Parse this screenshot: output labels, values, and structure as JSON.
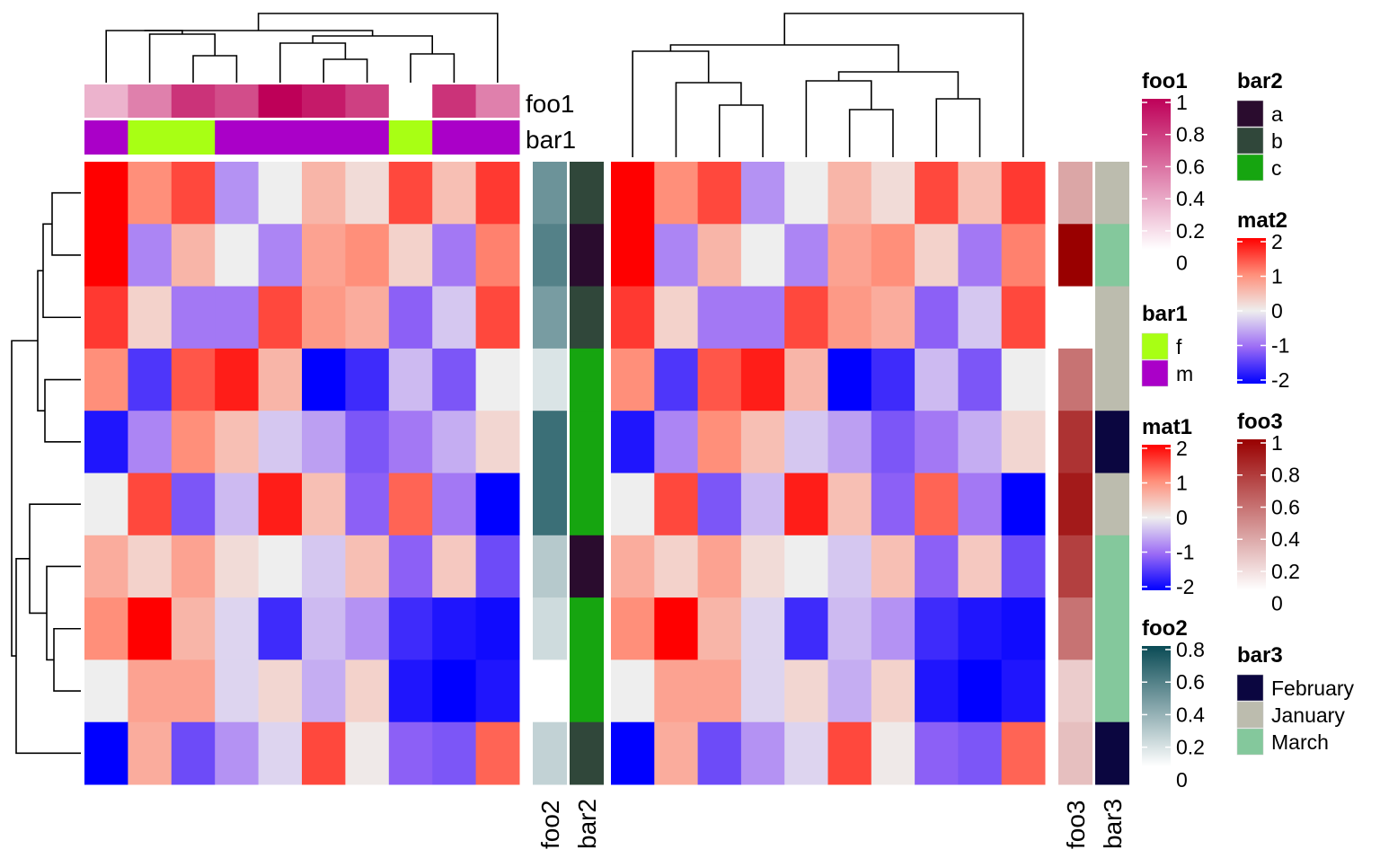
{
  "chart_data": {
    "type": "heatmap",
    "row_clustered": true,
    "column_clustered": true,
    "matrices": [
      {
        "name": "mat1",
        "values": [
          [
            2.0,
            1.0,
            1.5,
            -0.7,
            0.0,
            0.6,
            0.2,
            1.5,
            0.5,
            1.6
          ],
          [
            2.1,
            -0.8,
            0.6,
            0.0,
            -0.8,
            0.8,
            1.0,
            0.3,
            -0.9,
            1.1
          ],
          [
            1.6,
            0.3,
            -0.9,
            -0.9,
            1.5,
            0.9,
            0.7,
            -1.1,
            -0.3,
            1.5
          ],
          [
            1.0,
            -1.5,
            1.4,
            1.8,
            0.6,
            -2.1,
            -1.6,
            -0.4,
            -1.2,
            0.0
          ],
          [
            -1.8,
            -0.8,
            1.0,
            0.5,
            -0.3,
            -0.6,
            -1.2,
            -0.9,
            -0.5,
            0.25
          ],
          [
            0.0,
            1.5,
            -1.2,
            -0.4,
            1.8,
            0.5,
            -1.1,
            1.3,
            -0.9,
            -2.1
          ],
          [
            0.7,
            0.3,
            0.8,
            0.2,
            0.0,
            -0.3,
            0.5,
            -1.1,
            0.4,
            -1.3
          ],
          [
            1.0,
            2.1,
            0.6,
            -0.2,
            -1.6,
            -0.4,
            -0.7,
            -1.6,
            -1.8,
            -1.9
          ],
          [
            0.0,
            0.8,
            0.8,
            -0.2,
            0.25,
            -0.5,
            0.3,
            -1.8,
            -2.2,
            -1.8
          ],
          [
            -2.1,
            0.7,
            -1.3,
            -0.7,
            -0.2,
            1.5,
            0.05,
            -1.1,
            -1.2,
            1.3
          ]
        ]
      },
      {
        "name": "mat2",
        "values": [
          [
            2.0,
            1.0,
            1.5,
            -0.7,
            0.0,
            0.6,
            0.2,
            1.5,
            0.5,
            1.6
          ],
          [
            2.1,
            -0.8,
            0.6,
            0.0,
            -0.8,
            0.8,
            1.0,
            0.3,
            -0.9,
            1.1
          ],
          [
            1.6,
            0.3,
            -0.9,
            -0.9,
            1.5,
            0.9,
            0.7,
            -1.1,
            -0.3,
            1.5
          ],
          [
            1.0,
            -1.5,
            1.4,
            1.8,
            0.6,
            -2.1,
            -1.6,
            -0.4,
            -1.2,
            0.0
          ],
          [
            -1.8,
            -0.8,
            1.0,
            0.5,
            -0.3,
            -0.6,
            -1.2,
            -0.9,
            -0.5,
            0.25
          ],
          [
            0.0,
            1.5,
            -1.2,
            -0.4,
            1.8,
            0.5,
            -1.1,
            1.3,
            -0.9,
            -2.1
          ],
          [
            0.7,
            0.3,
            0.8,
            0.2,
            0.0,
            -0.3,
            0.5,
            -1.1,
            0.4,
            -1.3
          ],
          [
            1.0,
            2.1,
            0.6,
            -0.2,
            -1.6,
            -0.4,
            -0.7,
            -1.6,
            -1.8,
            -1.9
          ],
          [
            0.0,
            0.8,
            0.8,
            -0.2,
            0.25,
            -0.5,
            0.3,
            -1.8,
            -2.2,
            -1.8
          ],
          [
            -2.1,
            0.7,
            -1.3,
            -0.7,
            -0.2,
            1.5,
            0.05,
            -1.1,
            -1.2,
            1.3
          ]
        ]
      }
    ],
    "column_annotations": {
      "foo1": {
        "label": "foo1",
        "values": [
          0.3,
          0.5,
          0.8,
          0.7,
          1.0,
          0.9,
          0.75,
          0.0,
          0.8,
          0.5
        ]
      },
      "bar1": {
        "label": "bar1",
        "values": [
          "m",
          "f",
          "f",
          "m",
          "m",
          "m",
          "m",
          "f",
          "m",
          "m"
        ]
      }
    },
    "row_annotations_mat1": {
      "foo2": {
        "label": "foo2",
        "values": [
          0.6,
          0.7,
          0.55,
          0.15,
          0.8,
          0.8,
          0.3,
          0.2,
          0.0,
          0.25
        ]
      },
      "bar2": {
        "label": "bar2",
        "values": [
          "b",
          "a",
          "b",
          "c",
          "c",
          "c",
          "a",
          "c",
          "c",
          "b"
        ]
      }
    },
    "row_annotations_mat2": {
      "foo3": {
        "label": "foo3",
        "values": [
          0.35,
          1.0,
          0.0,
          0.55,
          0.8,
          0.9,
          0.75,
          0.55,
          0.2,
          0.25
        ]
      },
      "bar3": {
        "label": "bar3",
        "values": [
          "January",
          "March",
          "January",
          "January",
          "February",
          "January",
          "March",
          "March",
          "March",
          "February"
        ]
      }
    },
    "legends": {
      "foo1": {
        "title": "foo1",
        "ticks": [
          "1",
          "0.8",
          "0.6",
          "0.4",
          "0.2",
          "0"
        ],
        "colors": [
          "#FFFFFF",
          "#BE0058"
        ]
      },
      "bar1": {
        "title": "bar1",
        "items": [
          {
            "label": "f",
            "color": "#A8FF14"
          },
          {
            "label": "m",
            "color": "#AA00C8"
          }
        ]
      },
      "mat1": {
        "title": "mat1",
        "ticks": [
          "2",
          "1",
          "0",
          "-1",
          "-2"
        ]
      },
      "foo2": {
        "title": "foo2",
        "ticks": [
          "0.8",
          "0.6",
          "0.4",
          "0.2",
          "0"
        ],
        "colors": [
          "#FFFFFF",
          "#0A4B55"
        ]
      },
      "bar2": {
        "title": "bar2",
        "items": [
          {
            "label": "a",
            "color": "#2A0C2E"
          },
          {
            "label": "b",
            "color": "#30473A"
          },
          {
            "label": "c",
            "color": "#16A510"
          }
        ]
      },
      "mat2": {
        "title": "mat2",
        "ticks": [
          "2",
          "1",
          "0",
          "-1",
          "-2"
        ]
      },
      "foo3": {
        "title": "foo3",
        "ticks": [
          "1",
          "0.8",
          "0.6",
          "0.4",
          "0.2",
          "0"
        ],
        "colors": [
          "#FFFFFF",
          "#990000"
        ]
      },
      "bar3": {
        "title": "bar3",
        "items": [
          {
            "label": "February",
            "color": "#0B0640"
          },
          {
            "label": "January",
            "color": "#BCBCAE"
          },
          {
            "label": "March",
            "color": "#84C89C"
          }
        ]
      }
    },
    "mat_color_stops": [
      [
        -2,
        "#0000FF"
      ],
      [
        -1,
        "#9B6BF5"
      ],
      [
        0,
        "#EEEEEE"
      ],
      [
        1,
        "#FF8F7A"
      ],
      [
        2,
        "#FF0000"
      ]
    ]
  }
}
